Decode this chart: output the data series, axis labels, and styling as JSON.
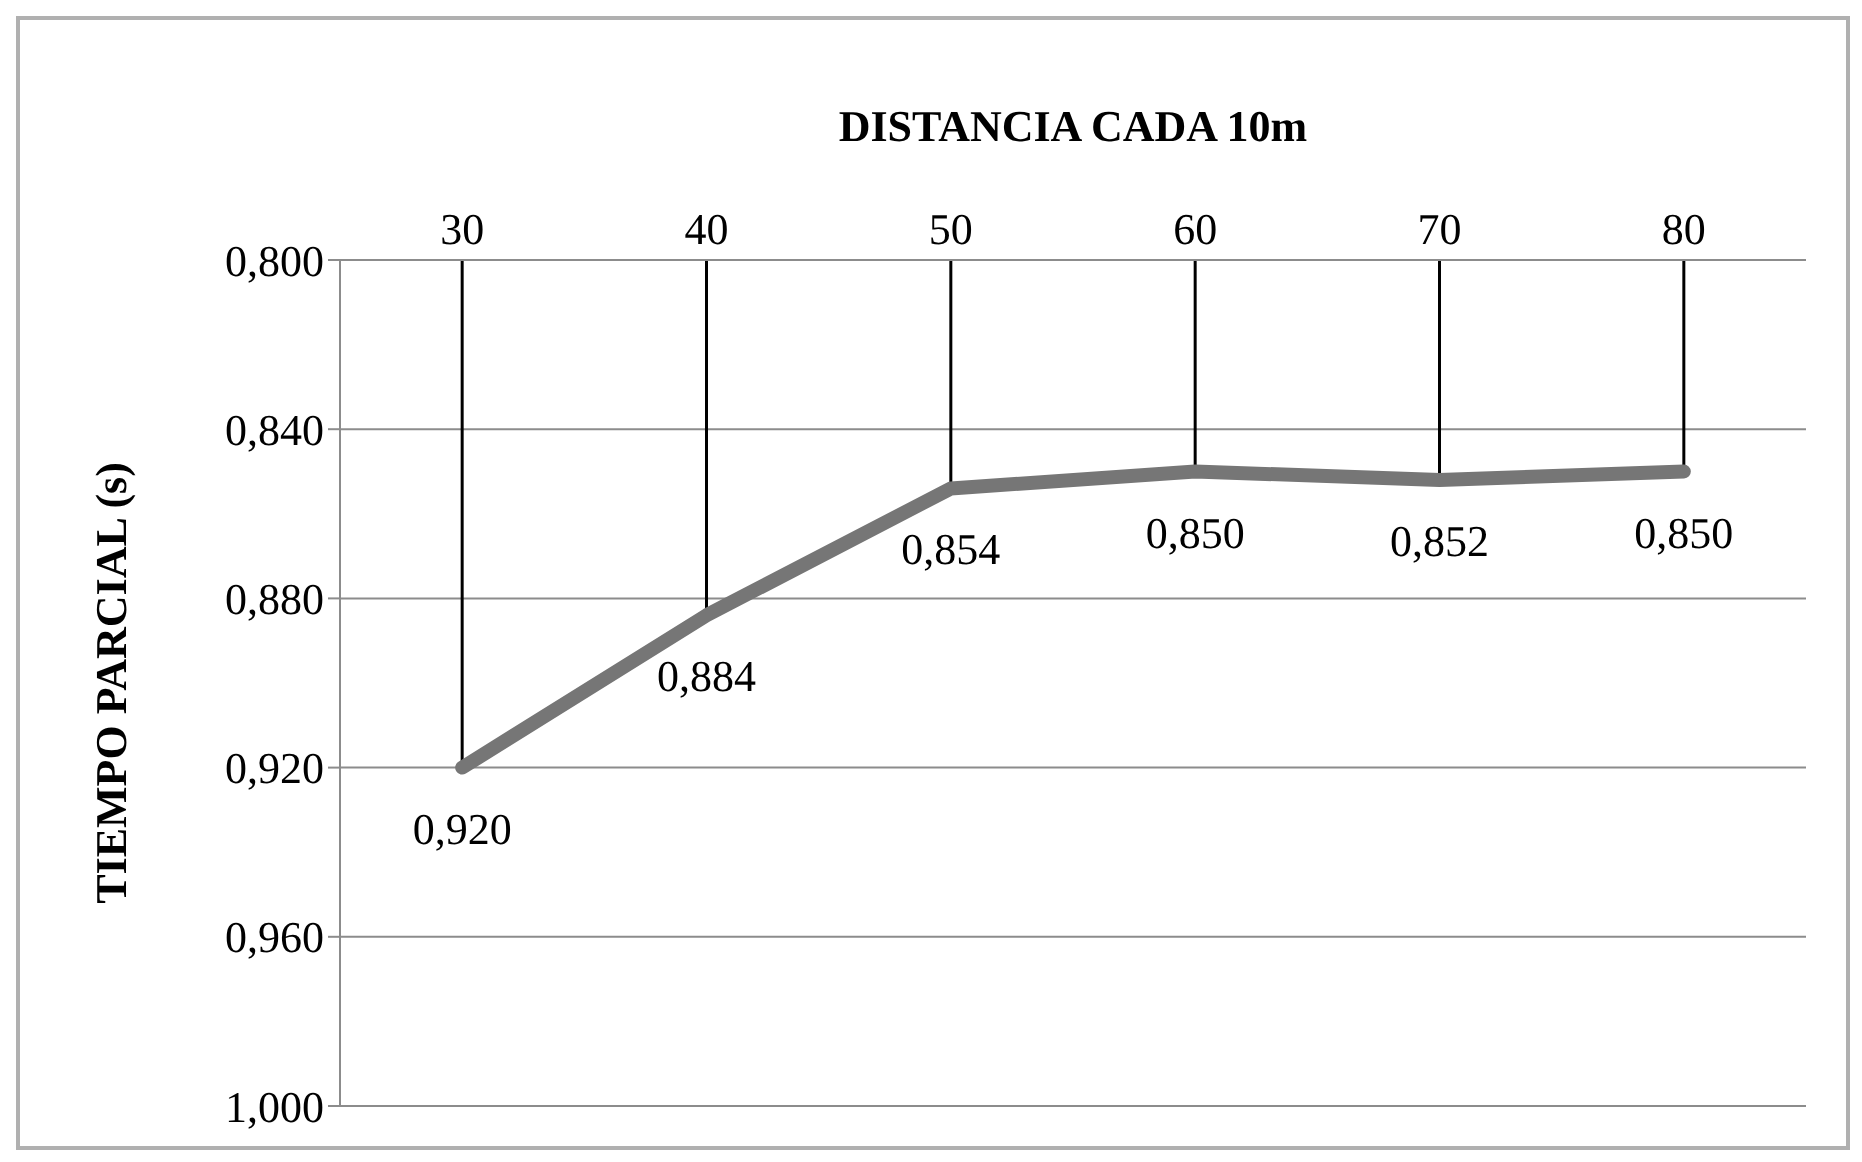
{
  "chart_data": {
    "type": "line",
    "xlabel": "DISTANCIA CADA 10m",
    "ylabel": "TIEMPO PARCIAL (s)",
    "categories": [
      "30",
      "40",
      "50",
      "60",
      "70",
      "80"
    ],
    "series": [
      {
        "color": "#767676",
        "values": [
          0.92,
          0.884,
          0.854,
          0.85,
          0.852,
          0.85
        ],
        "value_labels": [
          "0,920",
          "0,884",
          "0,854",
          "0,850",
          "0,852",
          "0,850"
        ]
      }
    ],
    "ylim": [
      1.0,
      0.8
    ],
    "yticks": [
      {
        "value": 0.8,
        "label": "0,800"
      },
      {
        "value": 0.84,
        "label": "0,840"
      },
      {
        "value": 0.88,
        "label": "0,880"
      },
      {
        "value": 0.92,
        "label": "0,920"
      },
      {
        "value": 0.96,
        "label": "0,960"
      },
      {
        "value": 1.0,
        "label": "1,000"
      }
    ],
    "grid": "y",
    "legend": false,
    "marker": "none",
    "line_style": "solid"
  }
}
